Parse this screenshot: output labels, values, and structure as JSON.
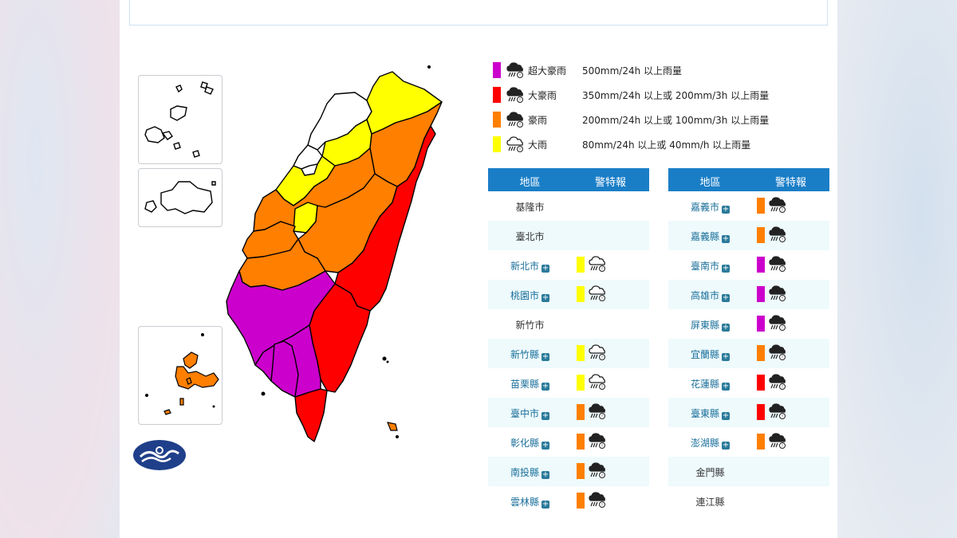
{
  "colors": {
    "extreme": "#cc00cc",
    "torrential": "#ff0000",
    "heavy_torrential": "#ff7f00",
    "heavy": "#ffff00",
    "table_header": "#1a7ec7"
  },
  "legend": [
    {
      "key": "extreme",
      "name": "超大豪雨",
      "desc": "500mm/24h 以上雨量",
      "icon": "rain-dark-icon"
    },
    {
      "key": "torrential",
      "name": "大豪雨",
      "desc": "350mm/24h 以上或 200mm/3h 以上雨量",
      "icon": "rain-dark-icon"
    },
    {
      "key": "heavy_torrential",
      "name": "豪雨",
      "desc": "200mm/24h 以上或 100mm/3h 以上雨量",
      "icon": "rain-dark-icon"
    },
    {
      "key": "heavy",
      "name": "大雨",
      "desc": "80mm/24h 以上或 40mm/h 以上雨量",
      "icon": "rain-light-icon"
    }
  ],
  "table_headers": {
    "region": "地區",
    "warning": "警特報"
  },
  "left_table": [
    {
      "name": "基隆市",
      "link": false,
      "level": ""
    },
    {
      "name": "臺北市",
      "link": false,
      "level": ""
    },
    {
      "name": "新北市",
      "link": true,
      "level": "heavy"
    },
    {
      "name": "桃園市",
      "link": true,
      "level": "heavy"
    },
    {
      "name": "新竹市",
      "link": false,
      "level": ""
    },
    {
      "name": "新竹縣",
      "link": true,
      "level": "heavy"
    },
    {
      "name": "苗栗縣",
      "link": true,
      "level": "heavy"
    },
    {
      "name": "臺中市",
      "link": true,
      "level": "heavy_torrential"
    },
    {
      "name": "彰化縣",
      "link": true,
      "level": "heavy_torrential"
    },
    {
      "name": "南投縣",
      "link": true,
      "level": "heavy_torrential"
    },
    {
      "name": "雲林縣",
      "link": true,
      "level": "heavy_torrential"
    }
  ],
  "right_table": [
    {
      "name": "嘉義市",
      "link": true,
      "level": "heavy_torrential"
    },
    {
      "name": "嘉義縣",
      "link": true,
      "level": "heavy_torrential"
    },
    {
      "name": "臺南市",
      "link": true,
      "level": "extreme"
    },
    {
      "name": "高雄市",
      "link": true,
      "level": "extreme"
    },
    {
      "name": "屏東縣",
      "link": true,
      "level": "extreme"
    },
    {
      "name": "宜蘭縣",
      "link": true,
      "level": "heavy_torrential"
    },
    {
      "name": "花蓮縣",
      "link": true,
      "level": "torrential"
    },
    {
      "name": "臺東縣",
      "link": true,
      "level": "torrential"
    },
    {
      "name": "澎湖縣",
      "link": true,
      "level": "heavy_torrential"
    },
    {
      "name": "金門縣",
      "link": false,
      "level": ""
    },
    {
      "name": "連江縣",
      "link": false,
      "level": ""
    }
  ]
}
